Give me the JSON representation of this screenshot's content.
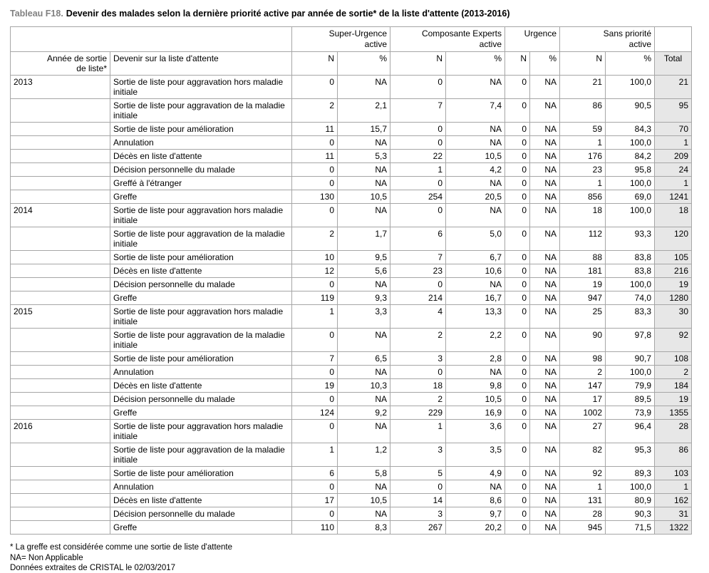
{
  "title": {
    "prefix": "Tableau F18.",
    "text": "Devenir des malades selon la dernière priorité active par année de sortie* de la liste d'attente (2013-2016)"
  },
  "colors": {
    "title_prefix": "#808080",
    "border": "#a6a6a6",
    "total_bg": "#e7e7e7"
  },
  "table": {
    "group_headers": [
      {
        "line1": "Super-Urgence",
        "line2": "active"
      },
      {
        "line1": "Composante Experts",
        "line2": "active"
      },
      {
        "line1": "Urgence",
        "line2": ""
      },
      {
        "line1": "Sans priorité",
        "line2": "active"
      }
    ],
    "headers": {
      "year_line1": "Année de sortie",
      "year_line2": "de liste*",
      "outcome": "Devenir sur la liste d'attente",
      "n": "N",
      "pct": "%",
      "total": "Total"
    },
    "rows": [
      {
        "year": "2013",
        "outcome": "Sortie de liste pour aggravation hors maladie initiale",
        "values": [
          "0",
          "NA",
          "0",
          "NA",
          "0",
          "NA",
          "21",
          "100,0"
        ],
        "total": "21",
        "tall": true
      },
      {
        "year": "",
        "outcome": "Sortie de liste pour aggravation de la maladie initiale",
        "values": [
          "2",
          "2,1",
          "7",
          "7,4",
          "0",
          "NA",
          "86",
          "90,5"
        ],
        "total": "95",
        "tall": true
      },
      {
        "year": "",
        "outcome": "Sortie de liste pour amélioration",
        "values": [
          "11",
          "15,7",
          "0",
          "NA",
          "0",
          "NA",
          "59",
          "84,3"
        ],
        "total": "70",
        "tall": false
      },
      {
        "year": "",
        "outcome": "Annulation",
        "values": [
          "0",
          "NA",
          "0",
          "NA",
          "0",
          "NA",
          "1",
          "100,0"
        ],
        "total": "1",
        "tall": false
      },
      {
        "year": "",
        "outcome": "Décès en liste d'attente",
        "values": [
          "11",
          "5,3",
          "22",
          "10,5",
          "0",
          "NA",
          "176",
          "84,2"
        ],
        "total": "209",
        "tall": false
      },
      {
        "year": "",
        "outcome": "Décision personnelle du malade",
        "values": [
          "0",
          "NA",
          "1",
          "4,2",
          "0",
          "NA",
          "23",
          "95,8"
        ],
        "total": "24",
        "tall": false
      },
      {
        "year": "",
        "outcome": "Greffé à l'étranger",
        "values": [
          "0",
          "NA",
          "0",
          "NA",
          "0",
          "NA",
          "1",
          "100,0"
        ],
        "total": "1",
        "tall": false
      },
      {
        "year": "",
        "outcome": "Greffe",
        "values": [
          "130",
          "10,5",
          "254",
          "20,5",
          "0",
          "NA",
          "856",
          "69,0"
        ],
        "total": "1241",
        "tall": false
      },
      {
        "year": "2014",
        "outcome": "Sortie de liste pour aggravation hors maladie initiale",
        "values": [
          "0",
          "NA",
          "0",
          "NA",
          "0",
          "NA",
          "18",
          "100,0"
        ],
        "total": "18",
        "tall": true
      },
      {
        "year": "",
        "outcome": "Sortie de liste pour aggravation de la maladie initiale",
        "values": [
          "2",
          "1,7",
          "6",
          "5,0",
          "0",
          "NA",
          "112",
          "93,3"
        ],
        "total": "120",
        "tall": true
      },
      {
        "year": "",
        "outcome": "Sortie de liste pour amélioration",
        "values": [
          "10",
          "9,5",
          "7",
          "6,7",
          "0",
          "NA",
          "88",
          "83,8"
        ],
        "total": "105",
        "tall": false
      },
      {
        "year": "",
        "outcome": "Décès en liste d'attente",
        "values": [
          "12",
          "5,6",
          "23",
          "10,6",
          "0",
          "NA",
          "181",
          "83,8"
        ],
        "total": "216",
        "tall": false
      },
      {
        "year": "",
        "outcome": "Décision personnelle du malade",
        "values": [
          "0",
          "NA",
          "0",
          "NA",
          "0",
          "NA",
          "19",
          "100,0"
        ],
        "total": "19",
        "tall": false
      },
      {
        "year": "",
        "outcome": "Greffe",
        "values": [
          "119",
          "9,3",
          "214",
          "16,7",
          "0",
          "NA",
          "947",
          "74,0"
        ],
        "total": "1280",
        "tall": false
      },
      {
        "year": "2015",
        "outcome": "Sortie de liste pour aggravation hors maladie initiale",
        "values": [
          "1",
          "3,3",
          "4",
          "13,3",
          "0",
          "NA",
          "25",
          "83,3"
        ],
        "total": "30",
        "tall": true
      },
      {
        "year": "",
        "outcome": "Sortie de liste pour aggravation de la maladie initiale",
        "values": [
          "0",
          "NA",
          "2",
          "2,2",
          "0",
          "NA",
          "90",
          "97,8"
        ],
        "total": "92",
        "tall": true
      },
      {
        "year": "",
        "outcome": "Sortie de liste pour amélioration",
        "values": [
          "7",
          "6,5",
          "3",
          "2,8",
          "0",
          "NA",
          "98",
          "90,7"
        ],
        "total": "108",
        "tall": false
      },
      {
        "year": "",
        "outcome": "Annulation",
        "values": [
          "0",
          "NA",
          "0",
          "NA",
          "0",
          "NA",
          "2",
          "100,0"
        ],
        "total": "2",
        "tall": false
      },
      {
        "year": "",
        "outcome": "Décès en liste d'attente",
        "values": [
          "19",
          "10,3",
          "18",
          "9,8",
          "0",
          "NA",
          "147",
          "79,9"
        ],
        "total": "184",
        "tall": false
      },
      {
        "year": "",
        "outcome": "Décision personnelle du malade",
        "values": [
          "0",
          "NA",
          "2",
          "10,5",
          "0",
          "NA",
          "17",
          "89,5"
        ],
        "total": "19",
        "tall": false
      },
      {
        "year": "",
        "outcome": "Greffe",
        "values": [
          "124",
          "9,2",
          "229",
          "16,9",
          "0",
          "NA",
          "1002",
          "73,9"
        ],
        "total": "1355",
        "tall": false
      },
      {
        "year": "2016",
        "outcome": "Sortie de liste pour aggravation hors maladie initiale",
        "values": [
          "0",
          "NA",
          "1",
          "3,6",
          "0",
          "NA",
          "27",
          "96,4"
        ],
        "total": "28",
        "tall": true
      },
      {
        "year": "",
        "outcome": "Sortie de liste pour aggravation de la maladie initiale",
        "values": [
          "1",
          "1,2",
          "3",
          "3,5",
          "0",
          "NA",
          "82",
          "95,3"
        ],
        "total": "86",
        "tall": true
      },
      {
        "year": "",
        "outcome": "Sortie de liste pour amélioration",
        "values": [
          "6",
          "5,8",
          "5",
          "4,9",
          "0",
          "NA",
          "92",
          "89,3"
        ],
        "total": "103",
        "tall": false
      },
      {
        "year": "",
        "outcome": "Annulation",
        "values": [
          "0",
          "NA",
          "0",
          "NA",
          "0",
          "NA",
          "1",
          "100,0"
        ],
        "total": "1",
        "tall": false
      },
      {
        "year": "",
        "outcome": "Décès en liste d'attente",
        "values": [
          "17",
          "10,5",
          "14",
          "8,6",
          "0",
          "NA",
          "131",
          "80,9"
        ],
        "total": "162",
        "tall": false
      },
      {
        "year": "",
        "outcome": "Décision personnelle du malade",
        "values": [
          "0",
          "NA",
          "3",
          "9,7",
          "0",
          "NA",
          "28",
          "90,3"
        ],
        "total": "31",
        "tall": false
      },
      {
        "year": "",
        "outcome": "Greffe",
        "values": [
          "110",
          "8,3",
          "267",
          "20,2",
          "0",
          "NA",
          "945",
          "71,5"
        ],
        "total": "1322",
        "tall": false
      }
    ]
  },
  "footnotes": [
    "* La greffe est considérée comme une sortie de liste d'attente",
    "NA= Non Applicable",
    "Données extraites de CRISTAL le 02/03/2017"
  ]
}
